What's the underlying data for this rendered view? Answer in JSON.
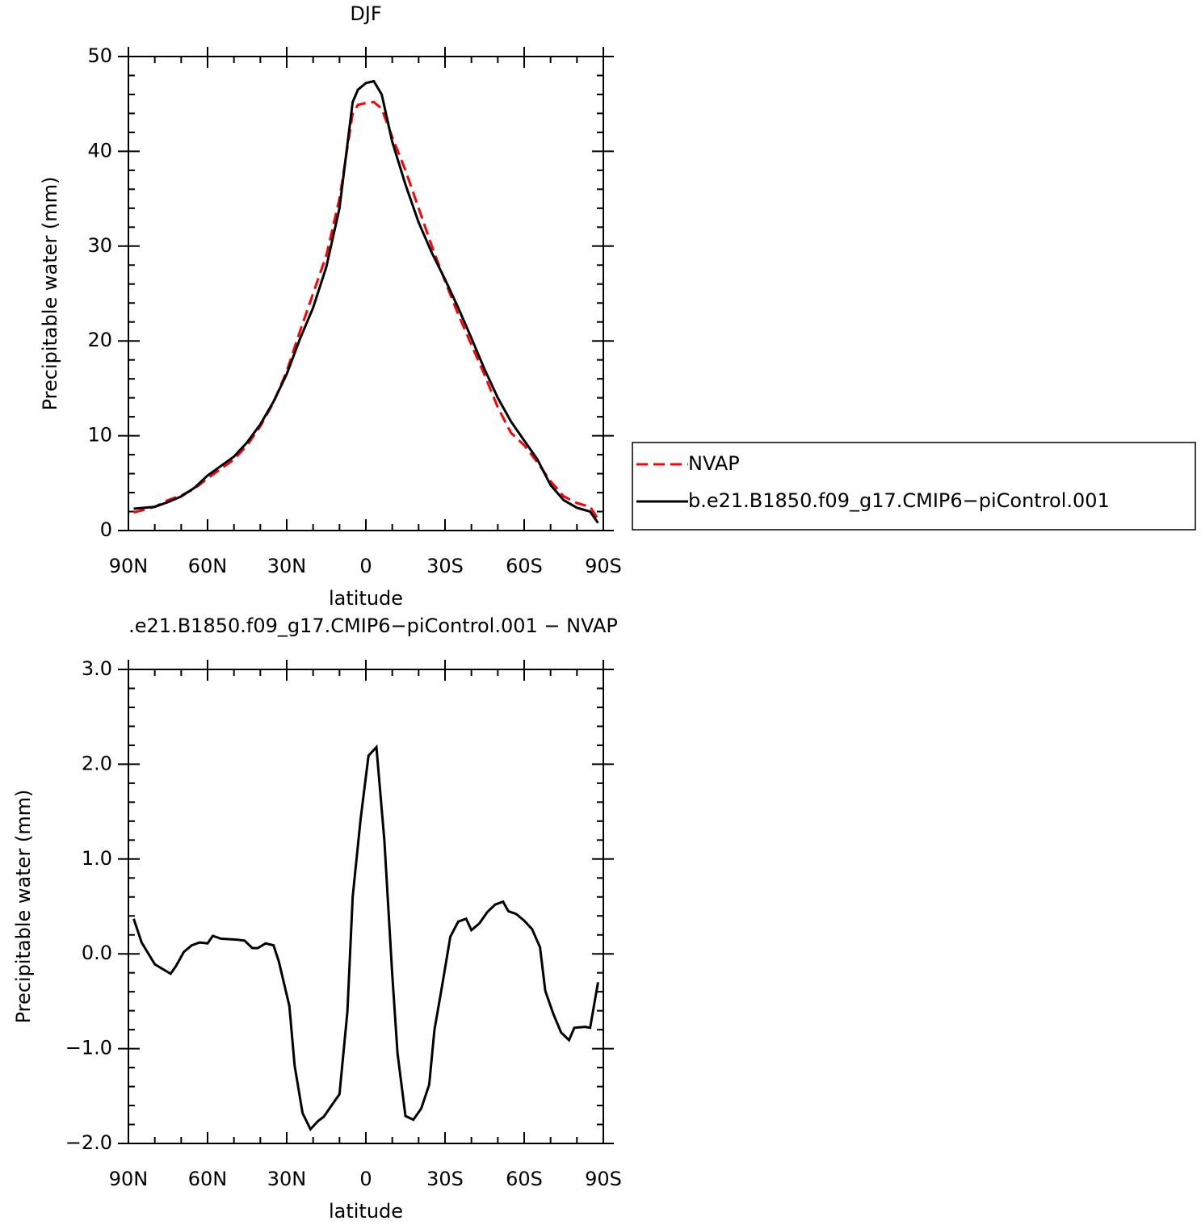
{
  "chart_data": [
    {
      "type": "line",
      "title": "DJF",
      "xlabel": "latitude",
      "ylabel": "Precipitable water (mm)",
      "x": [
        88,
        80,
        75,
        70,
        65,
        60,
        55,
        50,
        45,
        40,
        35,
        30,
        25,
        20,
        15,
        10,
        5,
        3,
        0,
        -3,
        -6,
        -10,
        -15,
        -20,
        -25,
        -30,
        -35,
        -40,
        -45,
        -50,
        -55,
        -60,
        -65,
        -70,
        -75,
        -80,
        -85,
        -88
      ],
      "series": [
        {
          "name": "NVAP",
          "color": "#ff0000",
          "linestyle": "dashed",
          "values": [
            1.9,
            2.5,
            3.2,
            3.7,
            4.4,
            5.5,
            6.5,
            7.5,
            9.0,
            11.0,
            13.5,
            16.8,
            21.0,
            25.0,
            29.0,
            35.0,
            44.0,
            44.9,
            45.1,
            45.2,
            44.5,
            41.5,
            38.0,
            34.0,
            30.0,
            26.3,
            22.8,
            19.6,
            16.4,
            13.0,
            10.3,
            9.0,
            7.2,
            5.2,
            3.6,
            2.9,
            2.5,
            1.2
          ]
        },
        {
          "name": "b.e21.B1850.f09_g17.CMIP6−piControl.001",
          "color": "#000000",
          "linestyle": "solid",
          "values": [
            2.3,
            2.5,
            3.0,
            3.6,
            4.5,
            5.8,
            6.8,
            7.8,
            9.3,
            11.2,
            13.6,
            16.5,
            20.2,
            23.5,
            27.8,
            34.0,
            45.2,
            46.5,
            47.2,
            47.4,
            46.0,
            41.0,
            36.5,
            32.5,
            29.3,
            26.5,
            23.5,
            20.3,
            17.0,
            14.0,
            11.5,
            9.5,
            7.5,
            4.8,
            3.2,
            2.4,
            2.0,
            0.8
          ]
        }
      ],
      "xlim": [
        90,
        -90
      ],
      "xticks": [
        {
          "value": 90,
          "label": "90N"
        },
        {
          "value": 60,
          "label": "60N"
        },
        {
          "value": 30,
          "label": "30N"
        },
        0,
        {
          "value": -30,
          "label": "30S"
        },
        {
          "value": -60,
          "label": "60S"
        },
        {
          "value": -90,
          "label": "90S"
        }
      ],
      "ylim": [
        0,
        50
      ],
      "yticks": [
        0,
        10,
        20,
        30,
        40,
        50
      ],
      "legend": "right"
    },
    {
      "type": "line",
      "title": ".e21.B1850.f09_g17.CMIP6−piControl.001  −  NVAP",
      "xlabel": "latitude",
      "ylabel": "Precipitable water (mm)",
      "x": [
        88,
        85,
        80,
        74,
        72,
        69,
        66,
        63,
        60,
        58,
        55,
        49,
        46,
        43,
        41,
        38,
        35,
        33,
        29,
        27,
        24,
        21,
        18,
        16,
        13,
        10,
        7,
        5,
        2,
        -1,
        -4,
        -7,
        -10,
        -12,
        -15,
        -18,
        -21,
        -24,
        -26,
        -29,
        -32,
        -35,
        -38,
        -40,
        -43,
        -46,
        -49,
        -52,
        -54,
        -57,
        -60,
        -63,
        -66,
        -68,
        -71,
        -74,
        -77,
        -79,
        -83,
        -85,
        -88
      ],
      "color": "#000000",
      "values": [
        0.37,
        0.12,
        -0.11,
        -0.21,
        -0.13,
        0.02,
        0.09,
        0.12,
        0.11,
        0.19,
        0.16,
        0.15,
        0.14,
        0.06,
        0.06,
        0.11,
        0.09,
        -0.08,
        -0.55,
        -1.18,
        -1.68,
        -1.85,
        -1.76,
        -1.72,
        -1.6,
        -1.48,
        -0.61,
        0.6,
        1.42,
        2.09,
        2.18,
        1.2,
        -0.22,
        -1.05,
        -1.71,
        -1.75,
        -1.63,
        -1.38,
        -0.8,
        -0.32,
        0.18,
        0.34,
        0.37,
        0.25,
        0.32,
        0.44,
        0.52,
        0.55,
        0.45,
        0.42,
        0.35,
        0.26,
        0.07,
        -0.39,
        -0.63,
        -0.83,
        -0.91,
        -0.78,
        -0.77,
        -0.78,
        -0.3
      ],
      "xlim": [
        90,
        -90
      ],
      "xticks": [
        {
          "value": 90,
          "label": "90N"
        },
        {
          "value": 60,
          "label": "60N"
        },
        {
          "value": 30,
          "label": "30N"
        },
        0,
        {
          "value": -30,
          "label": "30S"
        },
        {
          "value": -60,
          "label": "60S"
        },
        {
          "value": -90,
          "label": "90S"
        }
      ],
      "ylim": [
        -2,
        3
      ],
      "yticks": [
        {
          "value": -2,
          "label": "−2.0"
        },
        {
          "value": -1,
          "label": "−1.0"
        },
        {
          "value": 0,
          "label": "0.0"
        },
        {
          "value": 1,
          "label": "1.0"
        },
        {
          "value": 2,
          "label": "2.0"
        },
        {
          "value": 3,
          "label": "3.0"
        }
      ]
    }
  ]
}
